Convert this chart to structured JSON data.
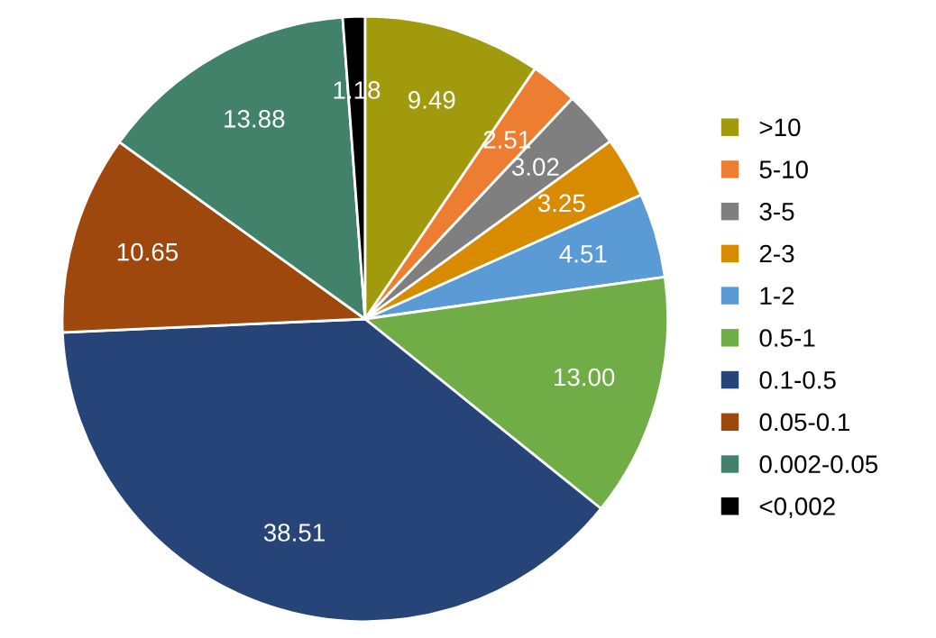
{
  "chart_data": {
    "type": "pie",
    "categories": [
      ">10",
      "5-10",
      "3-5",
      "2-3",
      "1-2",
      "0.5-1",
      "0.1-0.5",
      "0.05-0.1",
      "0.002-0.05",
      "<0,002"
    ],
    "values": [
      9.49,
      2.51,
      3.02,
      3.25,
      4.51,
      13.0,
      38.51,
      10.65,
      13.88,
      1.18
    ],
    "value_labels": [
      "9.49",
      "2.51",
      "3.02",
      "3.25",
      "4.51",
      "13.00",
      "38.51",
      "10.65",
      "13.88",
      "1.18"
    ],
    "colors": [
      "#a09a0c",
      "#ed7d31",
      "#7f7f7f",
      "#d98b00",
      "#5b9bd5",
      "#70ad47",
      "#264478",
      "#9e480e",
      "#43826a",
      "#000000"
    ],
    "legend": "right"
  }
}
